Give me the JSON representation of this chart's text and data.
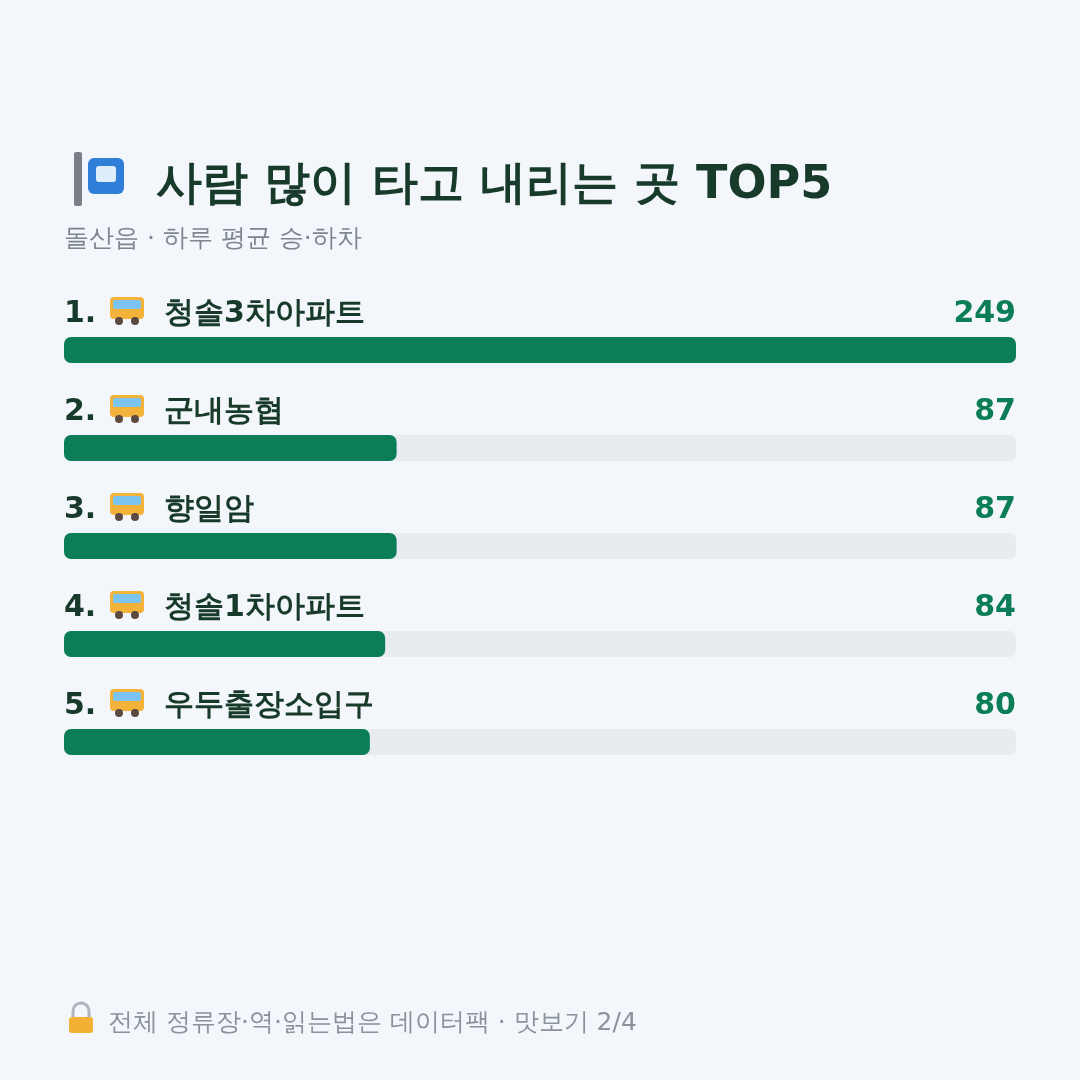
{
  "chart_data": {
    "type": "bar",
    "orientation": "horizontal",
    "title": "사람 많이 타고 내리는 곳 TOP5",
    "subtitle": "돌산읍 · 하루 평균 승·하차",
    "categories": [
      "1. 청솔3차아파트",
      "2. 군내농협",
      "3. 향일암",
      "4. 청솔1차아파트",
      "5. 우두출장소입구"
    ],
    "values": [
      249,
      87,
      87,
      84,
      80
    ],
    "color": "#0b7d57",
    "data_labels": true,
    "annotations": [
      "전체 정류장·역·읽는법은 데이터팩 · 맛보기 2/4"
    ]
  }
}
